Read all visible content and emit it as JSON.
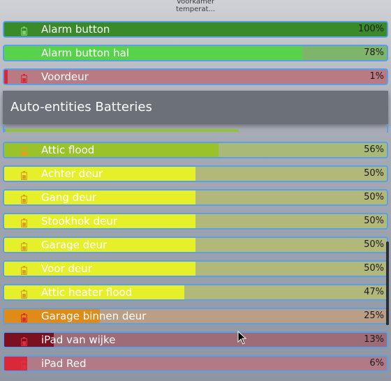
{
  "header_peek": {
    "line1": "Voorkamer",
    "line2": "temperat..."
  },
  "section": {
    "title": "Auto-entities Batteries"
  },
  "icons": {
    "battery": "battery-icon"
  },
  "top_rows": [
    {
      "label": "Alarm button",
      "value": "100%",
      "level": 1.0,
      "fill_color": "#3a8a2a",
      "track_color": "#3a8a2a",
      "icon_color": "#7fd06a"
    },
    {
      "label": "Alarm button hal",
      "value": "78%",
      "level": 0.78,
      "fill_color": "#57d24a",
      "track_color": "#7fb46b",
      "icon_color": "#57d24a"
    },
    {
      "label": "Voordeur",
      "value": "1%",
      "level": 0.01,
      "fill_color": "#d8283a",
      "track_color": "#b97a83",
      "icon_color": "#d8283a"
    }
  ],
  "battery_rows": [
    {
      "label": "Attic flood",
      "value": "56%",
      "level": 0.56,
      "fill_color": "#9ac22a",
      "track_color": "#a9ba78",
      "icon_color": "#e0a020"
    },
    {
      "label": "Achter deur",
      "value": "50%",
      "level": 0.5,
      "fill_color": "#e5f02a",
      "track_color": "#b2b87a",
      "icon_color": "#d6a020"
    },
    {
      "label": "Gang deur",
      "value": "50%",
      "level": 0.5,
      "fill_color": "#e5f02a",
      "track_color": "#b2b87a",
      "icon_color": "#d6a020"
    },
    {
      "label": "Stookhok deur",
      "value": "50%",
      "level": 0.5,
      "fill_color": "#e5f02a",
      "track_color": "#b2b87a",
      "icon_color": "#d6a020"
    },
    {
      "label": "Garage deur",
      "value": "50%",
      "level": 0.5,
      "fill_color": "#e5f02a",
      "track_color": "#b2b87a",
      "icon_color": "#d6a020"
    },
    {
      "label": "Voor deur",
      "value": "50%",
      "level": 0.5,
      "fill_color": "#e5f02a",
      "track_color": "#b2b87a",
      "icon_color": "#d6a020"
    },
    {
      "label": "Attic heater flood",
      "value": "47%",
      "level": 0.47,
      "fill_color": "#e5f02a",
      "track_color": "#b2b87a",
      "icon_color": "#d6a020"
    },
    {
      "label": "Garage binnen deur",
      "value": "25%",
      "level": 0.25,
      "fill_color": "#e08a18",
      "track_color": "#bb9e86",
      "icon_color": "#d83020"
    },
    {
      "label": "iPad van wijke",
      "value": "13%",
      "level": 0.13,
      "fill_color": "#7a1020",
      "track_color": "#9e6b78",
      "icon_color": "#e03040"
    },
    {
      "label": "iPad Red",
      "value": "6%",
      "level": 0.06,
      "fill_color": "#d8283a",
      "track_color": "#b27a86",
      "icon_color": "#e03040"
    }
  ]
}
